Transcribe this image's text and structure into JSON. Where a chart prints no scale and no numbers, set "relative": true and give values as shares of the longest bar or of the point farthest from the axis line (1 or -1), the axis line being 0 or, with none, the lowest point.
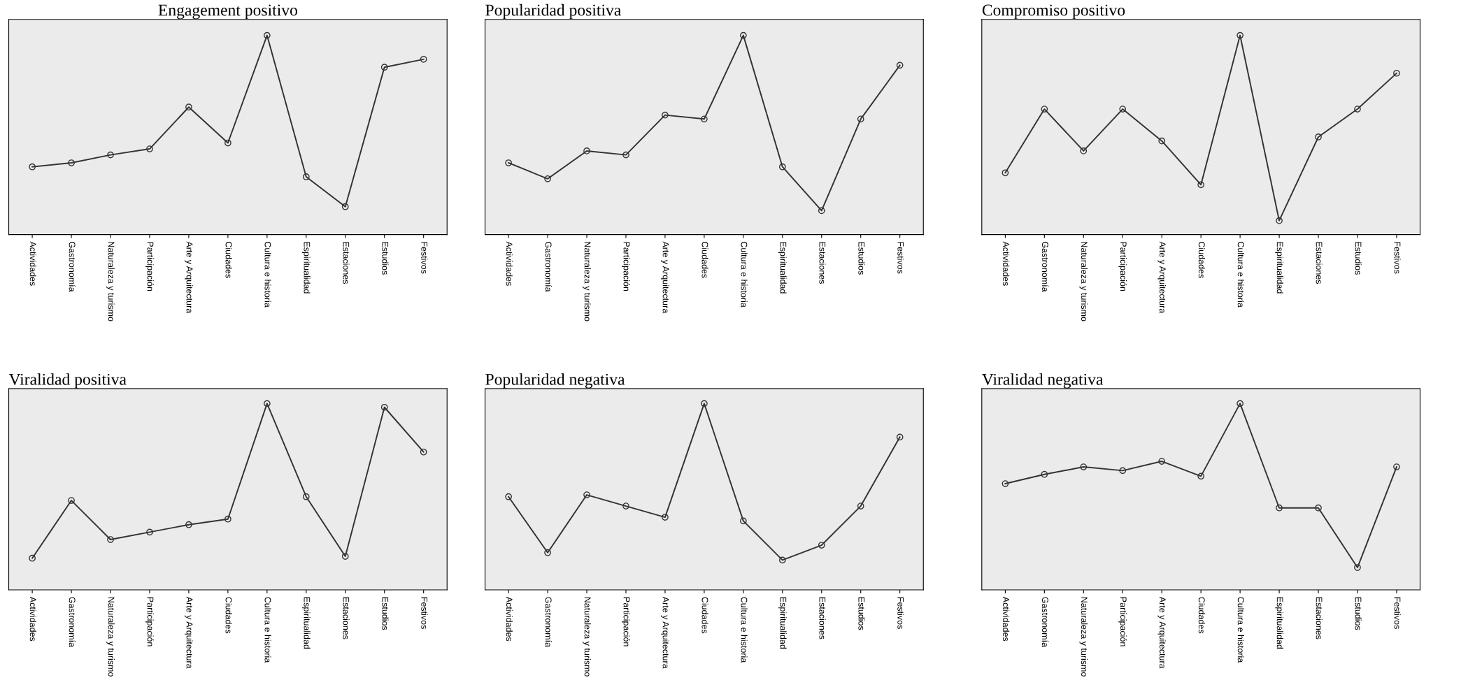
{
  "chart_data": [
    {
      "type": "line",
      "title": "Engagement positivo",
      "relative": true,
      "tick_labels": "x",
      "marker": "circle",
      "grid": false,
      "legend": false,
      "categories": [
        "Actividades",
        "Gastronomía",
        "Naturaleza y turismo",
        "Participación",
        "Arte y Arquitectura",
        "Ciudades",
        "Cultura e historia",
        "Espiritualidad",
        "Estaciones",
        "Estudios",
        "Festivos"
      ],
      "series": [
        {
          "color": "#333333",
          "values": [
            0.34,
            0.36,
            0.4,
            0.43,
            0.64,
            0.46,
            1,
            0.29,
            0.14,
            0.84,
            0.88
          ]
        }
      ]
    },
    {
      "type": "line",
      "title": "Popularidad positiva",
      "relative": true,
      "tick_labels": "x",
      "marker": "circle",
      "grid": false,
      "legend": false,
      "categories": [
        "Actividades",
        "Gastronomía",
        "Naturaleza y turismo",
        "Participación",
        "Arte y Arquitectura",
        "Ciudades",
        "Cultura e historia",
        "Espiritualidad",
        "Estaciones",
        "Estudios",
        "Festivos"
      ],
      "series": [
        {
          "color": "#333333",
          "values": [
            0.36,
            0.28,
            0.42,
            0.4,
            0.6,
            0.58,
            1,
            0.34,
            0.12,
            0.58,
            0.85
          ]
        }
      ]
    },
    {
      "type": "line",
      "title": "Compromiso positivo",
      "relative": true,
      "tick_labels": "x",
      "marker": "circle",
      "grid": false,
      "legend": false,
      "categories": [
        "Actividades",
        "Gastronomía",
        "Naturaleza y turismo",
        "Participación",
        "Arte y Arquitectura",
        "Ciudades",
        "Cultura e historia",
        "Espiritualidad",
        "Estaciones",
        "Estudios",
        "Festivos"
      ],
      "series": [
        {
          "color": "#333333",
          "values": [
            0.31,
            0.63,
            0.42,
            0.63,
            0.47,
            0.25,
            1,
            0.07,
            0.49,
            0.63,
            0.81
          ]
        }
      ]
    },
    {
      "type": "line",
      "title": "Viralidad positiva",
      "relative": true,
      "tick_labels": "x",
      "marker": "circle",
      "grid": false,
      "legend": false,
      "categories": [
        "Actividades",
        "Gastronomía",
        "Naturaleza y turismo",
        "Participación",
        "Arte y Arquitectura",
        "Ciudades",
        "Cultura e historia",
        "Espiritualidad",
        "Estaciones",
        "Estudios",
        "Festivos"
      ],
      "series": [
        {
          "color": "#333333",
          "values": [
            0.17,
            0.48,
            0.27,
            0.31,
            0.35,
            0.38,
            1,
            0.5,
            0.18,
            0.98,
            0.74
          ]
        }
      ]
    },
    {
      "type": "line",
      "title": "Popularidad negativa",
      "relative": true,
      "tick_labels": "x",
      "marker": "circle",
      "grid": false,
      "legend": false,
      "categories": [
        "Actividades",
        "Gastronomía",
        "Naturaleza y turismo",
        "Participación",
        "Arte y Arquitectura",
        "Ciudades",
        "Cultura e historia",
        "Espiritualidad",
        "Estaciones",
        "Estudios",
        "Festivos"
      ],
      "series": [
        {
          "color": "#333333",
          "values": [
            0.5,
            0.2,
            0.51,
            0.45,
            0.39,
            1,
            0.37,
            0.16,
            0.24,
            0.45,
            0.82
          ]
        }
      ]
    },
    {
      "type": "line",
      "title": "Viralidad negativa",
      "relative": true,
      "tick_labels": "x",
      "marker": "circle",
      "grid": false,
      "legend": false,
      "categories": [
        "Actividades",
        "Gastronomía",
        "Naturaleza y turismo",
        "Participación",
        "Arte y Arquitectura",
        "Ciudades",
        "Cultura e historia",
        "Espiritualidad",
        "Estaciones",
        "Estudios",
        "Festivos"
      ],
      "series": [
        {
          "color": "#333333",
          "values": [
            0.57,
            0.62,
            0.66,
            0.64,
            0.69,
            0.61,
            1,
            0.44,
            0.44,
            0.12,
            0.66
          ]
        }
      ]
    }
  ]
}
